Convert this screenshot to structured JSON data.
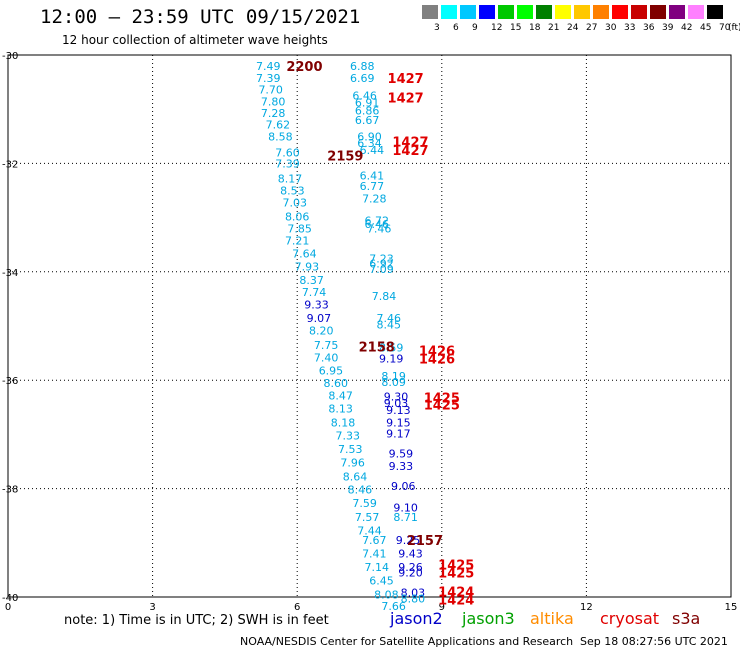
{
  "header": {
    "title": "12:00 – 23:59 UTC 09/15/2021",
    "subtitle": "12 hour collection of altimeter wave heights"
  },
  "colorbar": {
    "colors": [
      "#808080",
      "#00ffff",
      "#00c8ff",
      "#0000ff",
      "#00c800",
      "#00ff00",
      "#008000",
      "#ffff00",
      "#ffc800",
      "#ff8000",
      "#ff0000",
      "#c80000",
      "#800000",
      "#800080",
      "#ff80ff",
      "#000000"
    ],
    "labels": [
      "3",
      "6",
      "9",
      "12",
      "15",
      "18",
      "21",
      "24",
      "27",
      "30",
      "33",
      "36",
      "39",
      "42",
      "45",
      "70"
    ],
    "unit": "(ft)"
  },
  "footer": {
    "note": "note: 1) Time is in UTC; 2) SWH is in feet",
    "credit": "NOAA/NESDIS Center for Satellite Applications and Research",
    "timestamp": "Sep 18 08:27:56 UTC 2021"
  },
  "satellites": [
    {
      "name": "jason2",
      "color": "#0000c8"
    },
    {
      "name": "jason3",
      "color": "#00a000"
    },
    {
      "name": "altika",
      "color": "#ff8c00"
    },
    {
      "name": "cryosat",
      "color": "#e00000"
    },
    {
      "name": "s3a",
      "color": "#800000"
    }
  ],
  "chart_data": {
    "type": "scatter",
    "title": "12 hour collection of altimeter wave heights",
    "xlim": [
      0,
      15
    ],
    "ylim": [
      -40,
      -30
    ],
    "x_ticks": [
      "0",
      "3",
      "6",
      "9",
      "12",
      "15"
    ],
    "y_ticks": [
      "-30",
      "-32",
      "-34",
      "-36",
      "-38",
      "-40"
    ],
    "grid": true,
    "colors": {
      "swh_7": "#00a8e0",
      "swh_9": "#0000c8",
      "time_cryosat": "#e00000",
      "time_s3a": "#800000"
    },
    "swh_labels": [
      {
        "x": 5.4,
        "y": -30.2,
        "text": "7.49",
        "color": "swh_7"
      },
      {
        "x": 5.4,
        "y": -30.42,
        "text": "7.39",
        "color": "swh_7"
      },
      {
        "x": 5.45,
        "y": -30.64,
        "text": "7.70",
        "color": "swh_7"
      },
      {
        "x": 5.5,
        "y": -30.86,
        "text": "7.80",
        "color": "swh_7"
      },
      {
        "x": 5.5,
        "y": -31.07,
        "text": "7.28",
        "color": "swh_7"
      },
      {
        "x": 5.6,
        "y": -31.28,
        "text": "7.62",
        "color": "swh_7"
      },
      {
        "x": 5.65,
        "y": -31.5,
        "text": "8.58",
        "color": "swh_7"
      },
      {
        "x": 5.8,
        "y": -31.8,
        "text": "7.60",
        "color": "swh_7"
      },
      {
        "x": 5.8,
        "y": -32.0,
        "text": "7.39",
        "color": "swh_7"
      },
      {
        "x": 5.85,
        "y": -32.28,
        "text": "8.17",
        "color": "swh_7"
      },
      {
        "x": 5.9,
        "y": -32.5,
        "text": "8.53",
        "color": "swh_7"
      },
      {
        "x": 5.95,
        "y": -32.72,
        "text": "7.03",
        "color": "swh_7"
      },
      {
        "x": 6.0,
        "y": -32.98,
        "text": "8.06",
        "color": "swh_7"
      },
      {
        "x": 6.05,
        "y": -33.2,
        "text": "7.85",
        "color": "swh_7"
      },
      {
        "x": 6.0,
        "y": -33.42,
        "text": "7.21",
        "color": "swh_7"
      },
      {
        "x": 6.15,
        "y": -33.66,
        "text": "7.64",
        "color": "swh_7"
      },
      {
        "x": 6.2,
        "y": -33.9,
        "text": "7.93",
        "color": "swh_7"
      },
      {
        "x": 6.3,
        "y": -34.15,
        "text": "8.37",
        "color": "swh_7"
      },
      {
        "x": 6.35,
        "y": -34.37,
        "text": "7.74",
        "color": "swh_7"
      },
      {
        "x": 6.4,
        "y": -34.6,
        "text": "9.33",
        "color": "swh_9"
      },
      {
        "x": 6.45,
        "y": -34.85,
        "text": "9.07",
        "color": "swh_9"
      },
      {
        "x": 6.5,
        "y": -35.08,
        "text": "8.20",
        "color": "swh_7"
      },
      {
        "x": 6.6,
        "y": -35.35,
        "text": "7.75",
        "color": "swh_7"
      },
      {
        "x": 6.6,
        "y": -35.58,
        "text": "7.40",
        "color": "swh_7"
      },
      {
        "x": 6.7,
        "y": -35.82,
        "text": "6.95",
        "color": "swh_7"
      },
      {
        "x": 6.8,
        "y": -36.05,
        "text": "8.60",
        "color": "swh_7"
      },
      {
        "x": 6.9,
        "y": -36.28,
        "text": "8.47",
        "color": "swh_7"
      },
      {
        "x": 6.9,
        "y": -36.52,
        "text": "8.13",
        "color": "swh_7"
      },
      {
        "x": 6.95,
        "y": -36.78,
        "text": "8.18",
        "color": "swh_7"
      },
      {
        "x": 7.05,
        "y": -37.02,
        "text": "7.33",
        "color": "swh_7"
      },
      {
        "x": 7.1,
        "y": -37.27,
        "text": "7.53",
        "color": "swh_7"
      },
      {
        "x": 7.15,
        "y": -37.52,
        "text": "7.96",
        "color": "swh_7"
      },
      {
        "x": 7.2,
        "y": -37.78,
        "text": "8.64",
        "color": "swh_7"
      },
      {
        "x": 7.3,
        "y": -38.02,
        "text": "8.46",
        "color": "swh_7"
      },
      {
        "x": 7.4,
        "y": -38.27,
        "text": "7.59",
        "color": "swh_7"
      },
      {
        "x": 7.45,
        "y": -38.52,
        "text": "7.57",
        "color": "swh_7"
      },
      {
        "x": 7.5,
        "y": -38.77,
        "text": "7.44",
        "color": "swh_7"
      },
      {
        "x": 7.6,
        "y": -38.95,
        "text": "7.67",
        "color": "swh_7"
      },
      {
        "x": 7.6,
        "y": -39.2,
        "text": "7.41",
        "color": "swh_7"
      },
      {
        "x": 7.65,
        "y": -39.45,
        "text": "7.14",
        "color": "swh_7"
      },
      {
        "x": 7.75,
        "y": -39.7,
        "text": "6.45",
        "color": "swh_7"
      },
      {
        "x": 7.85,
        "y": -39.95,
        "text": "8.08",
        "color": "swh_7"
      },
      {
        "x": 8.0,
        "y": -40.17,
        "text": "7.66",
        "color": "swh_7"
      },
      {
        "x": 7.35,
        "y": -30.2,
        "text": "6.88",
        "color": "swh_7"
      },
      {
        "x": 7.35,
        "y": -30.42,
        "text": "6.69",
        "color": "swh_7"
      },
      {
        "x": 7.4,
        "y": -30.75,
        "text": "6.46",
        "color": "swh_7"
      },
      {
        "x": 7.45,
        "y": -30.88,
        "text": "6.91",
        "color": "swh_7"
      },
      {
        "x": 7.45,
        "y": -31.02,
        "text": "6.86",
        "color": "swh_7"
      },
      {
        "x": 7.45,
        "y": -31.2,
        "text": "6.67",
        "color": "swh_7"
      },
      {
        "x": 7.5,
        "y": -31.5,
        "text": "6.90",
        "color": "swh_7"
      },
      {
        "x": 7.5,
        "y": -31.62,
        "text": "6.34",
        "color": "swh_7"
      },
      {
        "x": 7.55,
        "y": -31.75,
        "text": "6.44",
        "color": "swh_7"
      },
      {
        "x": 7.55,
        "y": -32.22,
        "text": "6.41",
        "color": "swh_7"
      },
      {
        "x": 7.55,
        "y": -32.42,
        "text": "6.77",
        "color": "swh_7"
      },
      {
        "x": 7.6,
        "y": -32.65,
        "text": "7.28",
        "color": "swh_7"
      },
      {
        "x": 7.65,
        "y": -33.05,
        "text": "6.72",
        "color": "swh_7"
      },
      {
        "x": 7.65,
        "y": -33.12,
        "text": "6.46",
        "color": "swh_7"
      },
      {
        "x": 7.7,
        "y": -33.2,
        "text": "7.46",
        "color": "swh_7"
      },
      {
        "x": 7.75,
        "y": -33.75,
        "text": "7.23",
        "color": "swh_7"
      },
      {
        "x": 7.75,
        "y": -33.85,
        "text": "6.92",
        "color": "swh_7"
      },
      {
        "x": 7.75,
        "y": -33.95,
        "text": "7.09",
        "color": "swh_7"
      },
      {
        "x": 7.8,
        "y": -34.45,
        "text": "7.84",
        "color": "swh_7"
      },
      {
        "x": 7.9,
        "y": -34.85,
        "text": "7.46",
        "color": "swh_7"
      },
      {
        "x": 7.9,
        "y": -34.97,
        "text": "8.45",
        "color": "swh_7"
      },
      {
        "x": 7.95,
        "y": -35.4,
        "text": "8.59",
        "color": "swh_7"
      },
      {
        "x": 7.95,
        "y": -35.6,
        "text": "9.19",
        "color": "swh_9"
      },
      {
        "x": 8.0,
        "y": -35.92,
        "text": "8.19",
        "color": "swh_7"
      },
      {
        "x": 8.0,
        "y": -36.03,
        "text": "8.09",
        "color": "swh_7"
      },
      {
        "x": 8.05,
        "y": -36.3,
        "text": "9.30",
        "color": "swh_9"
      },
      {
        "x": 8.05,
        "y": -36.42,
        "text": "9.03",
        "color": "swh_9"
      },
      {
        "x": 8.1,
        "y": -36.55,
        "text": "9.13",
        "color": "swh_9"
      },
      {
        "x": 8.1,
        "y": -36.78,
        "text": "9.15",
        "color": "swh_9"
      },
      {
        "x": 8.1,
        "y": -36.98,
        "text": "9.17",
        "color": "swh_9"
      },
      {
        "x": 8.15,
        "y": -37.35,
        "text": "9.59",
        "color": "swh_9"
      },
      {
        "x": 8.15,
        "y": -37.58,
        "text": "9.33",
        "color": "swh_9"
      },
      {
        "x": 8.2,
        "y": -37.95,
        "text": "9.06",
        "color": "swh_9"
      },
      {
        "x": 8.25,
        "y": -38.35,
        "text": "9.10",
        "color": "swh_9"
      },
      {
        "x": 8.25,
        "y": -38.52,
        "text": "8.71",
        "color": "swh_7"
      },
      {
        "x": 8.3,
        "y": -38.95,
        "text": "9.25",
        "color": "swh_9"
      },
      {
        "x": 8.35,
        "y": -39.2,
        "text": "9.43",
        "color": "swh_9"
      },
      {
        "x": 8.35,
        "y": -39.45,
        "text": "9.26",
        "color": "swh_9"
      },
      {
        "x": 8.35,
        "y": -39.55,
        "text": "9.20",
        "color": "swh_9"
      },
      {
        "x": 8.4,
        "y": -39.92,
        "text": "8.03",
        "color": "swh_9"
      },
      {
        "x": 8.4,
        "y": -40.03,
        "text": "8.80",
        "color": "swh_7"
      }
    ],
    "time_labels": [
      {
        "x": 6.15,
        "y": -30.2,
        "text": "2200",
        "color": "time_s3a"
      },
      {
        "x": 7.0,
        "y": -31.85,
        "text": "2159",
        "color": "time_s3a"
      },
      {
        "x": 7.65,
        "y": -35.38,
        "text": "2158",
        "color": "time_s3a"
      },
      {
        "x": 8.65,
        "y": -38.95,
        "text": "2157",
        "color": "time_s3a"
      },
      {
        "x": 8.25,
        "y": -30.42,
        "text": "1427",
        "color": "time_cryosat"
      },
      {
        "x": 8.25,
        "y": -30.78,
        "text": "1427",
        "color": "time_cryosat"
      },
      {
        "x": 8.35,
        "y": -31.6,
        "text": "1427",
        "color": "time_cryosat"
      },
      {
        "x": 8.35,
        "y": -31.75,
        "text": "1427",
        "color": "time_cryosat"
      },
      {
        "x": 8.9,
        "y": -35.45,
        "text": "1426",
        "color": "time_cryosat"
      },
      {
        "x": 8.9,
        "y": -35.6,
        "text": "1426",
        "color": "time_cryosat"
      },
      {
        "x": 9.0,
        "y": -36.32,
        "text": "1425",
        "color": "time_cryosat"
      },
      {
        "x": 9.0,
        "y": -36.45,
        "text": "1425",
        "color": "time_cryosat"
      },
      {
        "x": 9.3,
        "y": -39.4,
        "text": "1425",
        "color": "time_cryosat"
      },
      {
        "x": 9.3,
        "y": -39.55,
        "text": "1425",
        "color": "time_cryosat"
      },
      {
        "x": 9.3,
        "y": -39.9,
        "text": "1424",
        "color": "time_cryosat"
      },
      {
        "x": 9.3,
        "y": -40.05,
        "text": "1424",
        "color": "time_cryosat"
      }
    ]
  }
}
